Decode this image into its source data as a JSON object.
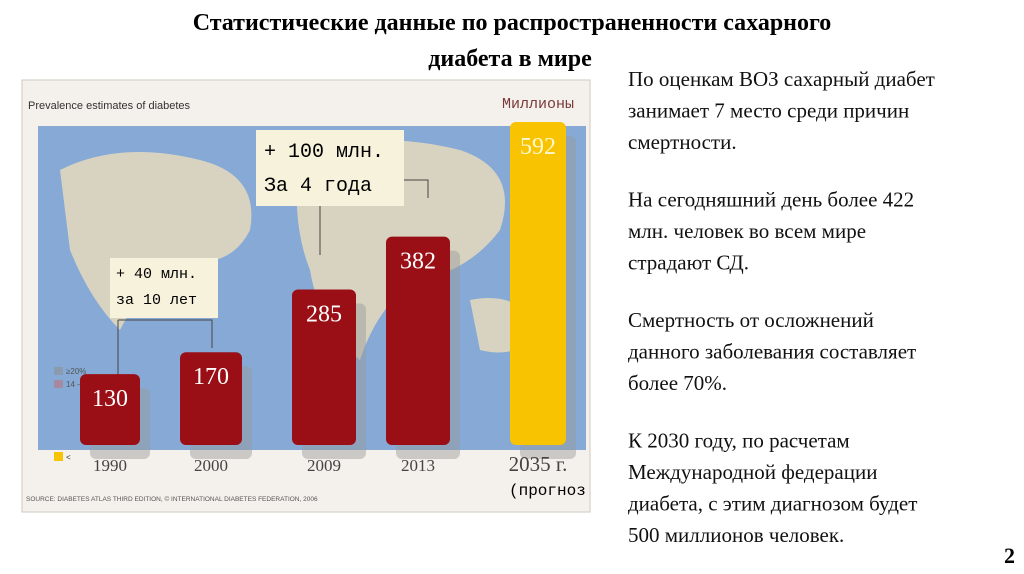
{
  "slide": {
    "title_lines": [
      "Статистические данные по распространенности сахарного",
      "диабета в мире"
    ],
    "paragraphs": [
      [
        "По оценкам ВОЗ сахарный диабет",
        "занимает 7 место среди причин",
        "смертности."
      ],
      [
        "На сегодняшний день более 422",
        "млн. человек во всем мире",
        "страдают СД."
      ],
      [
        "Смертность от осложнений",
        "данного заболевания составляет",
        "более 70%."
      ],
      [
        "К 2030 году, по расчетам",
        "Международной федерации",
        "диабета, с этим диагнозом будет",
        "500 миллионов человек."
      ]
    ],
    "page_number": "2"
  },
  "chart_data": {
    "type": "bar",
    "title": "Prevalence estimates of diabetes",
    "unit_label": "Миллионы",
    "categories": [
      "1990",
      "2000",
      "2009",
      "2013",
      "2035 г."
    ],
    "forecast_note": "(прогноз",
    "values": [
      130,
      170,
      285,
      382,
      592
    ],
    "colors": [
      "#9a0f16",
      "#9a0f16",
      "#9a0f16",
      "#9a0f16",
      "#f8c300"
    ],
    "annotations": [
      "+ 40 млн.",
      "за 10 лет",
      "+ 100 млн.",
      "За 4 года"
    ],
    "map_legend": [
      "≥20%",
      "14 – 20%",
      "<"
    ],
    "source": "SOURCE: DIABETES ATLAS THIRD EDITION, © INTERNATIONAL DIABETES FEDERATION, 2006"
  }
}
